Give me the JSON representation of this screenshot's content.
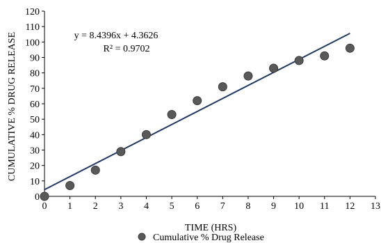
{
  "chart_data": {
    "type": "scatter",
    "title": "",
    "xlabel": "TIME (HRS)",
    "ylabel": "CUMULATIVE % DRUG RELEASE",
    "xlim": [
      0,
      13
    ],
    "ylim": [
      0,
      120
    ],
    "xticks": [
      0,
      1,
      2,
      3,
      4,
      5,
      6,
      7,
      8,
      9,
      10,
      11,
      12,
      13
    ],
    "yticks": [
      0,
      10,
      20,
      30,
      40,
      50,
      60,
      70,
      80,
      90,
      100,
      110,
      120
    ],
    "grid": false,
    "legend_position": "bottom",
    "series": [
      {
        "name": "Cumulative % Drug Release",
        "color": "#595959",
        "x": [
          0,
          1,
          2,
          3,
          4,
          5,
          6,
          7,
          8,
          9,
          10,
          11,
          12
        ],
        "y": [
          0,
          7,
          17,
          29,
          40,
          53,
          62,
          71,
          78,
          83,
          88,
          91,
          96
        ]
      }
    ],
    "trendline": {
      "type": "linear",
      "slope": 8.4396,
      "intercept": 4.3626,
      "x_range": [
        0,
        12
      ],
      "color": "#1f3864",
      "equation_label": "y = 8.4396x + 4.3626",
      "r2_label": "R² = 0.9702"
    }
  }
}
